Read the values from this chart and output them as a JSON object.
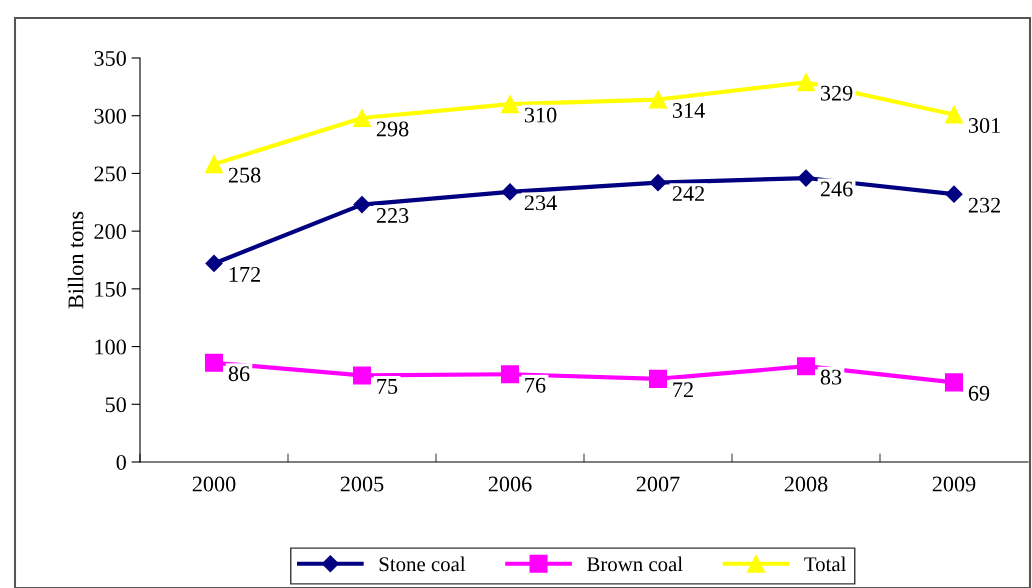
{
  "chart_data": {
    "type": "line",
    "ylabel": "Billon tons",
    "categories": [
      "2000",
      "2005",
      "2006",
      "2007",
      "2008",
      "2009"
    ],
    "series": [
      {
        "name": "Stone coal",
        "color": "#000080",
        "marker": "diamond",
        "values": [
          172,
          223,
          234,
          242,
          246,
          232
        ]
      },
      {
        "name": "Brown coal",
        "color": "#ff00ff",
        "marker": "square",
        "values": [
          86,
          75,
          76,
          72,
          83,
          69
        ]
      },
      {
        "name": "Total",
        "color": "#ffff00",
        "marker": "triangle",
        "values": [
          258,
          298,
          310,
          314,
          329,
          301
        ]
      }
    ],
    "ylim": [
      0,
      350
    ],
    "yticks": [
      0,
      50,
      100,
      150,
      200,
      250,
      300,
      350
    ],
    "data_labels": true,
    "legend": "bottom",
    "grid": false
  }
}
